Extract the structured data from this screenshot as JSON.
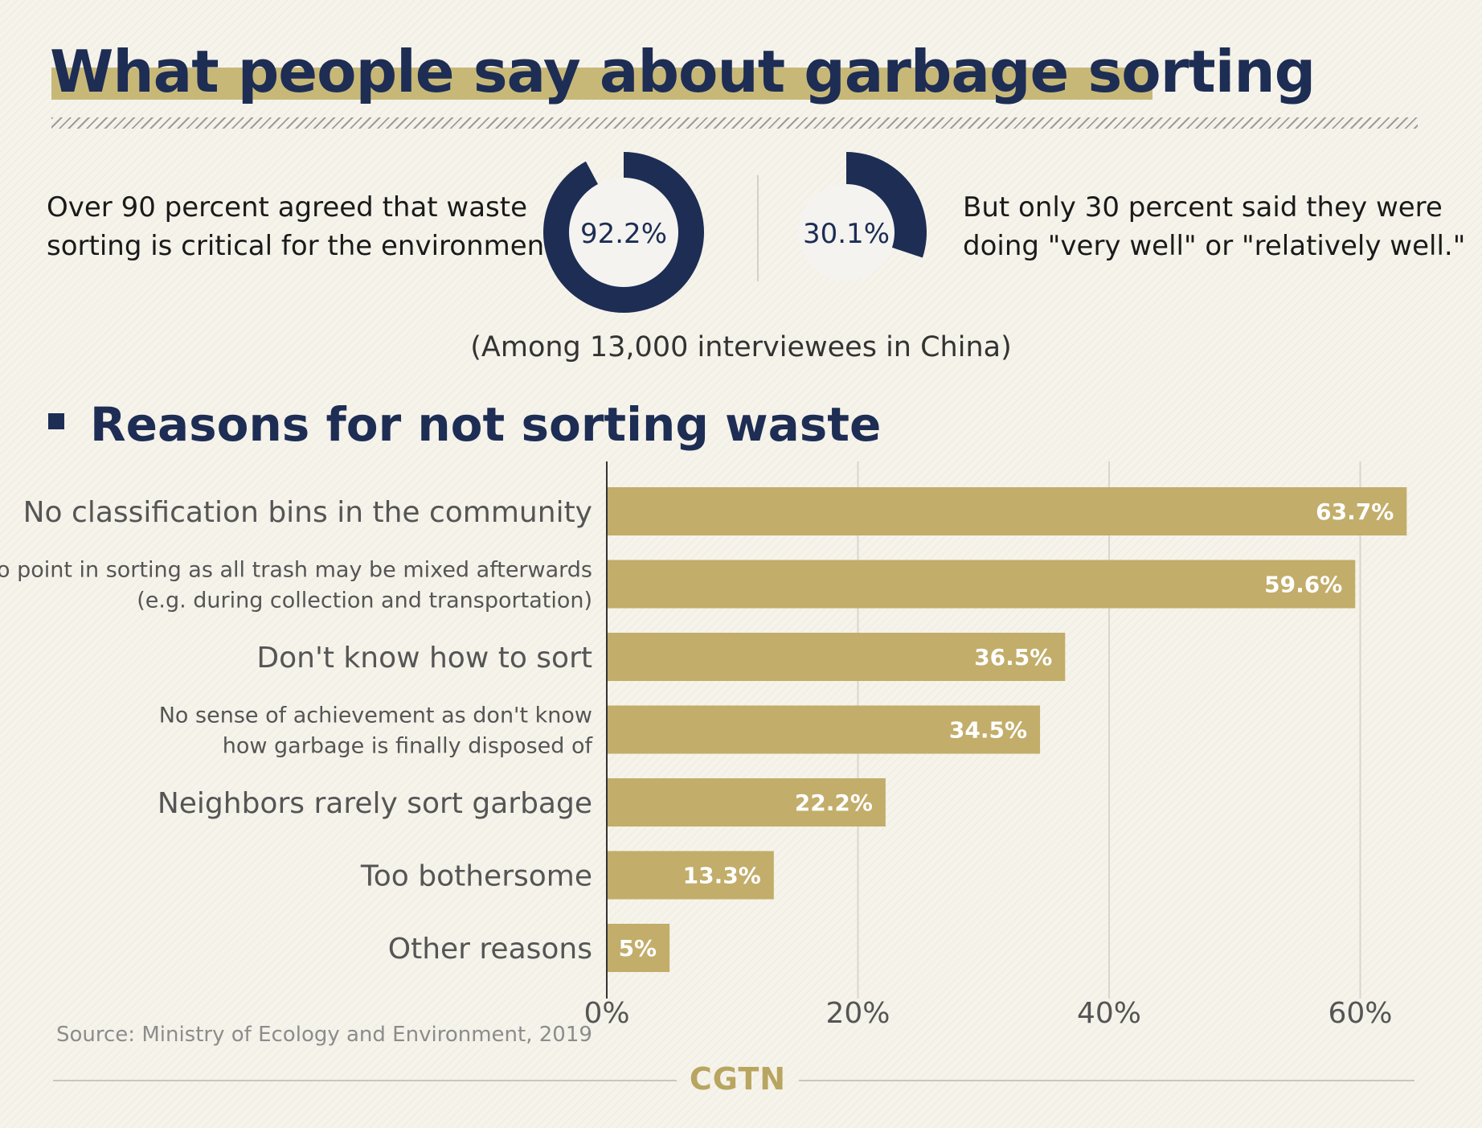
{
  "title": "What people say about garbage sorting",
  "stats": {
    "left": {
      "line1": "Over 90 percent agreed that waste",
      "line2": "sorting is critical for the environment.",
      "label": "92.2%",
      "value": 92.2
    },
    "right": {
      "line1": "But only 30 percent said they were",
      "line2": "doing \"very well\" or \"relatively well.\"",
      "label": "30.1%",
      "value": 30.1
    },
    "note": "(Among 13,000 interviewees in China)"
  },
  "section_title": "Reasons for not sorting waste",
  "chart_data": {
    "type": "bar",
    "orientation": "horizontal",
    "categories": [
      [
        "No classification bins in the community"
      ],
      [
        "No point in sorting as all trash may be mixed afterwards",
        "(e.g. during collection and transportation)"
      ],
      [
        "Don't know how to sort"
      ],
      [
        "No sense of achievement as don't know",
        "how garbage is finally disposed of"
      ],
      [
        "Neighbors rarely sort garbage"
      ],
      [
        "Too bothersome"
      ],
      [
        "Other reasons"
      ]
    ],
    "values": [
      63.7,
      59.6,
      36.5,
      34.5,
      22.2,
      13.3,
      5
    ],
    "value_labels": [
      "63.7%",
      "59.6%",
      "36.5%",
      "34.5%",
      "22.2%",
      "13.3%",
      "5%"
    ],
    "xlim": [
      0,
      64
    ],
    "xticks": [
      0,
      20,
      40,
      60
    ],
    "xtick_labels": [
      "0%",
      "20%",
      "40%",
      "60%"
    ],
    "grid": true,
    "bar_color": "#c2ad6a",
    "label_color": "#ffffff"
  },
  "colors": {
    "navy": "#1d2d54",
    "gold": "#c2ad6a",
    "background": "#f6f3ea"
  },
  "source": "Source: Ministry of Ecology and Environment, 2019",
  "brand": "CGTN"
}
